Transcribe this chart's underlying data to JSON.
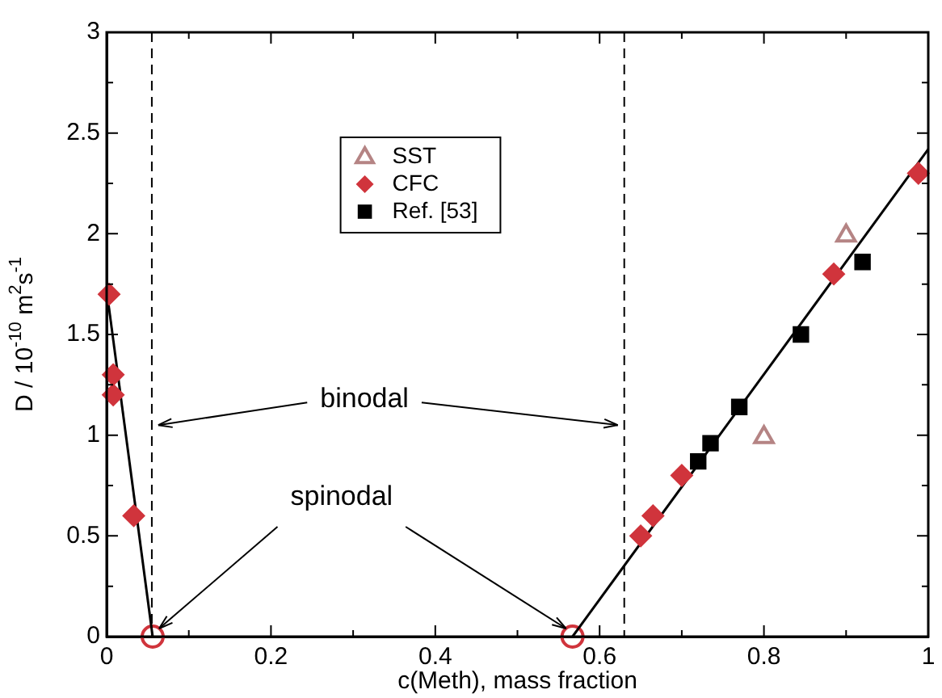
{
  "chart_data": {
    "type": "scatter",
    "xlabel": "c(Meth), mass fraction",
    "ylabel": "D / 10$^{-10}$ m$^{2}$s$^{-1}$",
    "xlim": [
      0,
      1
    ],
    "ylim": [
      0,
      3
    ],
    "xticks": [
      0,
      {
        "value": 0.1,
        "label": null
      },
      {
        "value": 0.2,
        "label": "0.2"
      },
      {
        "value": 0.3,
        "label": null
      },
      {
        "value": 0.4,
        "label": "0.4"
      },
      {
        "value": 0.5,
        "label": null
      },
      {
        "value": 0.6,
        "label": "0.6"
      },
      {
        "value": 0.7,
        "label": null
      },
      {
        "value": 0.8,
        "label": "0.8"
      },
      {
        "value": 0.9,
        "label": null
      },
      1
    ],
    "yticks": [
      0,
      {
        "value": 0.25,
        "label": null
      },
      0.5,
      {
        "value": 0.75,
        "label": null
      },
      1,
      {
        "value": 1.25,
        "label": null
      },
      1.5,
      {
        "value": 1.75,
        "label": null
      },
      2,
      {
        "value": 2.25,
        "label": null
      },
      2.5,
      {
        "value": 2.75,
        "label": null
      },
      3
    ],
    "grid": false,
    "legend": "top",
    "series": [
      {
        "name": "SST",
        "marker": "triangle",
        "color": "#b58484",
        "x": [
          0.8,
          0.9
        ],
        "values": [
          0.99,
          1.99
        ]
      },
      {
        "name": "CFC",
        "marker": "diamond",
        "color": "#d0343c",
        "x": [
          0.003,
          0.008,
          0.008,
          0.033,
          0.65,
          0.665,
          0.7,
          0.885,
          0.988
        ],
        "values": [
          1.7,
          1.3,
          1.2,
          0.6,
          0.5,
          0.6,
          0.8,
          1.8,
          2.3
        ]
      },
      {
        "name": "Ref. [53]",
        "marker": "square",
        "color": "#000000",
        "x": [
          0.72,
          0.735,
          0.77,
          0.845,
          0.92
        ],
        "values": [
          0.87,
          0.96,
          1.14,
          1.5,
          1.86
        ]
      },
      {
        "type": "line",
        "marker": "none",
        "color": "#000000",
        "x": [
          0,
          0.056
        ],
        "values": [
          1.72,
          0
        ]
      },
      {
        "type": "line",
        "marker": "none",
        "color": "#000000",
        "x": [
          0.567,
          1
        ],
        "values": [
          0,
          2.42
        ]
      },
      {
        "marker": "circle",
        "color": "#d0343c",
        "x": [
          0.056,
          0.567
        ],
        "values": [
          0,
          0
        ]
      }
    ],
    "ref_lines": [
      {
        "axis": "x",
        "value": 0.055,
        "color": "#000000",
        "line_style": "dashed"
      },
      {
        "axis": "x",
        "value": 0.63,
        "color": "#000000",
        "line_style": "dashed"
      }
    ],
    "annotations": [
      {
        "text": "binodal",
        "x": 0.055,
        "y": 1.05
      },
      {
        "text": "spinodal",
        "x": 0.056,
        "y": 0
      }
    ]
  }
}
